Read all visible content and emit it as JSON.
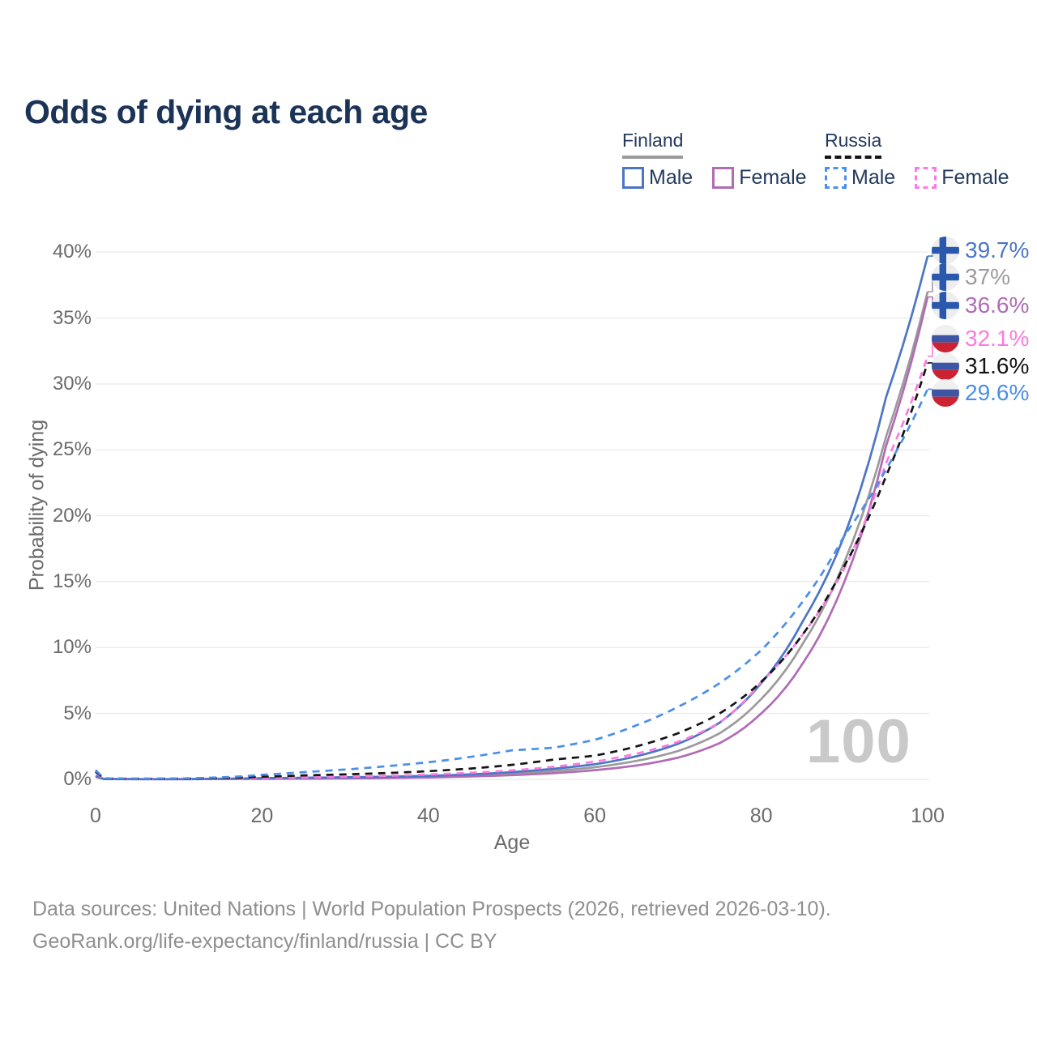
{
  "title": "Odds of dying at each age",
  "legend": {
    "finland": {
      "label": "Finland",
      "male": "Male",
      "female": "Female"
    },
    "russia": {
      "label": "Russia",
      "male": "Male",
      "female": "Female"
    }
  },
  "axes": {
    "y_label": "Probability of dying",
    "x_label": "Age",
    "y_ticks": [
      "0%",
      "5%",
      "10%",
      "15%",
      "20%",
      "25%",
      "30%",
      "35%",
      "40%"
    ],
    "x_ticks": [
      "0",
      "20",
      "40",
      "60",
      "80",
      "100"
    ]
  },
  "watermark": "100",
  "end_labels": [
    {
      "text": "39.7%",
      "country": "finland",
      "color_key": "finland_male"
    },
    {
      "text": "37%",
      "country": "finland",
      "color_key": "finland_total"
    },
    {
      "text": "36.6%",
      "country": "finland",
      "color_key": "finland_female"
    },
    {
      "text": "32.1%",
      "country": "russia",
      "color_key": "russia_female"
    },
    {
      "text": "31.6%",
      "country": "russia",
      "color_key": "russia_total"
    },
    {
      "text": "29.6%",
      "country": "russia",
      "color_key": "russia_male"
    }
  ],
  "footer": {
    "line1": "Data sources: United Nations | World Population Prospects (2026, retrieved 2026-03-10).",
    "line2": "GeoRank.org/life-expectancy/finland/russia | CC BY"
  },
  "colors": {
    "finland_male": "#4b76c5",
    "finland_female": "#b06cb4",
    "finland_total": "#9b9b9b",
    "russia_male": "#4a8fe8",
    "russia_female": "#fb7ae1",
    "russia_total": "#141414",
    "title": "#1b3356",
    "legend_text": "#22395c",
    "axis_text": "#6b6b6b",
    "grid": "#ebebeb",
    "watermark": "#c9c9c9",
    "footer_text": "#8f8f8f"
  },
  "chart_data": {
    "type": "line",
    "title": "Odds of dying at each age",
    "xlabel": "Age",
    "ylabel": "Probability of dying",
    "xlim": [
      0,
      100
    ],
    "ylim_percent": [
      0,
      40
    ],
    "grid": "horizontal",
    "legend_position": "top-right",
    "y_tick_values_percent": [
      0,
      5,
      10,
      15,
      20,
      25,
      30,
      35,
      40
    ],
    "x_tick_values": [
      0,
      20,
      40,
      60,
      80,
      100
    ],
    "x": [
      0,
      1,
      5,
      10,
      15,
      20,
      25,
      30,
      35,
      40,
      45,
      50,
      55,
      60,
      65,
      70,
      75,
      80,
      85,
      90,
      95,
      100
    ],
    "series": [
      {
        "name": "Finland Male",
        "color_key": "finland_male",
        "dash": false,
        "end_label": "39.7%",
        "values_percent": [
          0.25,
          0.03,
          0.02,
          0.02,
          0.05,
          0.09,
          0.12,
          0.16,
          0.2,
          0.27,
          0.38,
          0.55,
          0.8,
          1.15,
          1.75,
          2.7,
          4.3,
          7.3,
          12.0,
          18.5,
          29.0,
          39.7
        ]
      },
      {
        "name": "Finland Total",
        "color_key": "finland_total",
        "dash": false,
        "end_label": "37%",
        "values_percent": [
          0.22,
          0.025,
          0.015,
          0.015,
          0.04,
          0.06,
          0.08,
          0.11,
          0.15,
          0.21,
          0.3,
          0.43,
          0.63,
          0.92,
          1.4,
          2.15,
          3.5,
          6.1,
          10.3,
          16.5,
          26.0,
          37.0
        ]
      },
      {
        "name": "Finland Female",
        "color_key": "finland_female",
        "dash": false,
        "end_label": "36.6%",
        "values_percent": [
          0.2,
          0.02,
          0.01,
          0.01,
          0.025,
          0.035,
          0.05,
          0.07,
          0.1,
          0.15,
          0.22,
          0.32,
          0.47,
          0.7,
          1.05,
          1.65,
          2.75,
          5.0,
          8.8,
          15.0,
          25.3,
          36.6
        ]
      },
      {
        "name": "Russia Female",
        "color_key": "russia_female",
        "dash": true,
        "end_label": "32.1%",
        "values_percent": [
          0.5,
          0.05,
          0.03,
          0.04,
          0.06,
          0.1,
          0.14,
          0.2,
          0.27,
          0.37,
          0.5,
          0.68,
          0.95,
          1.35,
          1.95,
          2.85,
          4.3,
          7.4,
          11.0,
          16.0,
          24.0,
          32.1
        ]
      },
      {
        "name": "Russia Total",
        "color_key": "russia_total",
        "dash": true,
        "end_label": "31.6%",
        "values_percent": [
          0.6,
          0.06,
          0.04,
          0.05,
          0.09,
          0.2,
          0.3,
          0.38,
          0.48,
          0.62,
          0.82,
          1.1,
          1.5,
          1.8,
          2.5,
          3.5,
          5.0,
          7.4,
          11.0,
          16.2,
          23.0,
          31.6
        ]
      },
      {
        "name": "Russia Male",
        "color_key": "russia_male",
        "dash": true,
        "end_label": "29.6%",
        "values_percent": [
          0.7,
          0.08,
          0.06,
          0.07,
          0.15,
          0.35,
          0.55,
          0.75,
          1.0,
          1.3,
          1.7,
          2.2,
          2.4,
          3.0,
          4.1,
          5.5,
          7.3,
          9.8,
          13.5,
          18.5,
          23.5,
          29.6
        ]
      }
    ]
  }
}
